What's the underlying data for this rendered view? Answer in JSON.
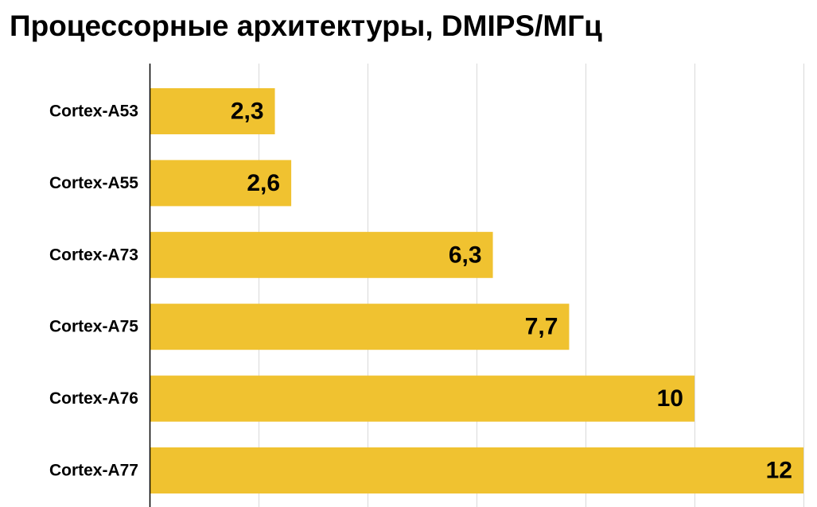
{
  "chart_data": {
    "type": "bar",
    "orientation": "horizontal",
    "title": "Процессорные архитектуры, DMIPS/МГц",
    "categories": [
      "Cortex-A53",
      "Cortex-A55",
      "Cortex-A73",
      "Cortex-A75",
      "Cortex-A76",
      "Cortex-A77"
    ],
    "values": [
      2.3,
      2.6,
      6.3,
      7.7,
      10,
      12
    ],
    "value_labels": [
      "2,3",
      "2,6",
      "6,3",
      "7,7",
      "10",
      "12"
    ],
    "xlabel": "",
    "ylabel": "",
    "xlim": [
      0,
      12
    ],
    "grid_step": 2,
    "grid": true,
    "bar_color": "#F0C230",
    "grid_color": "#D9D9D9",
    "axis_color": "#000000"
  }
}
